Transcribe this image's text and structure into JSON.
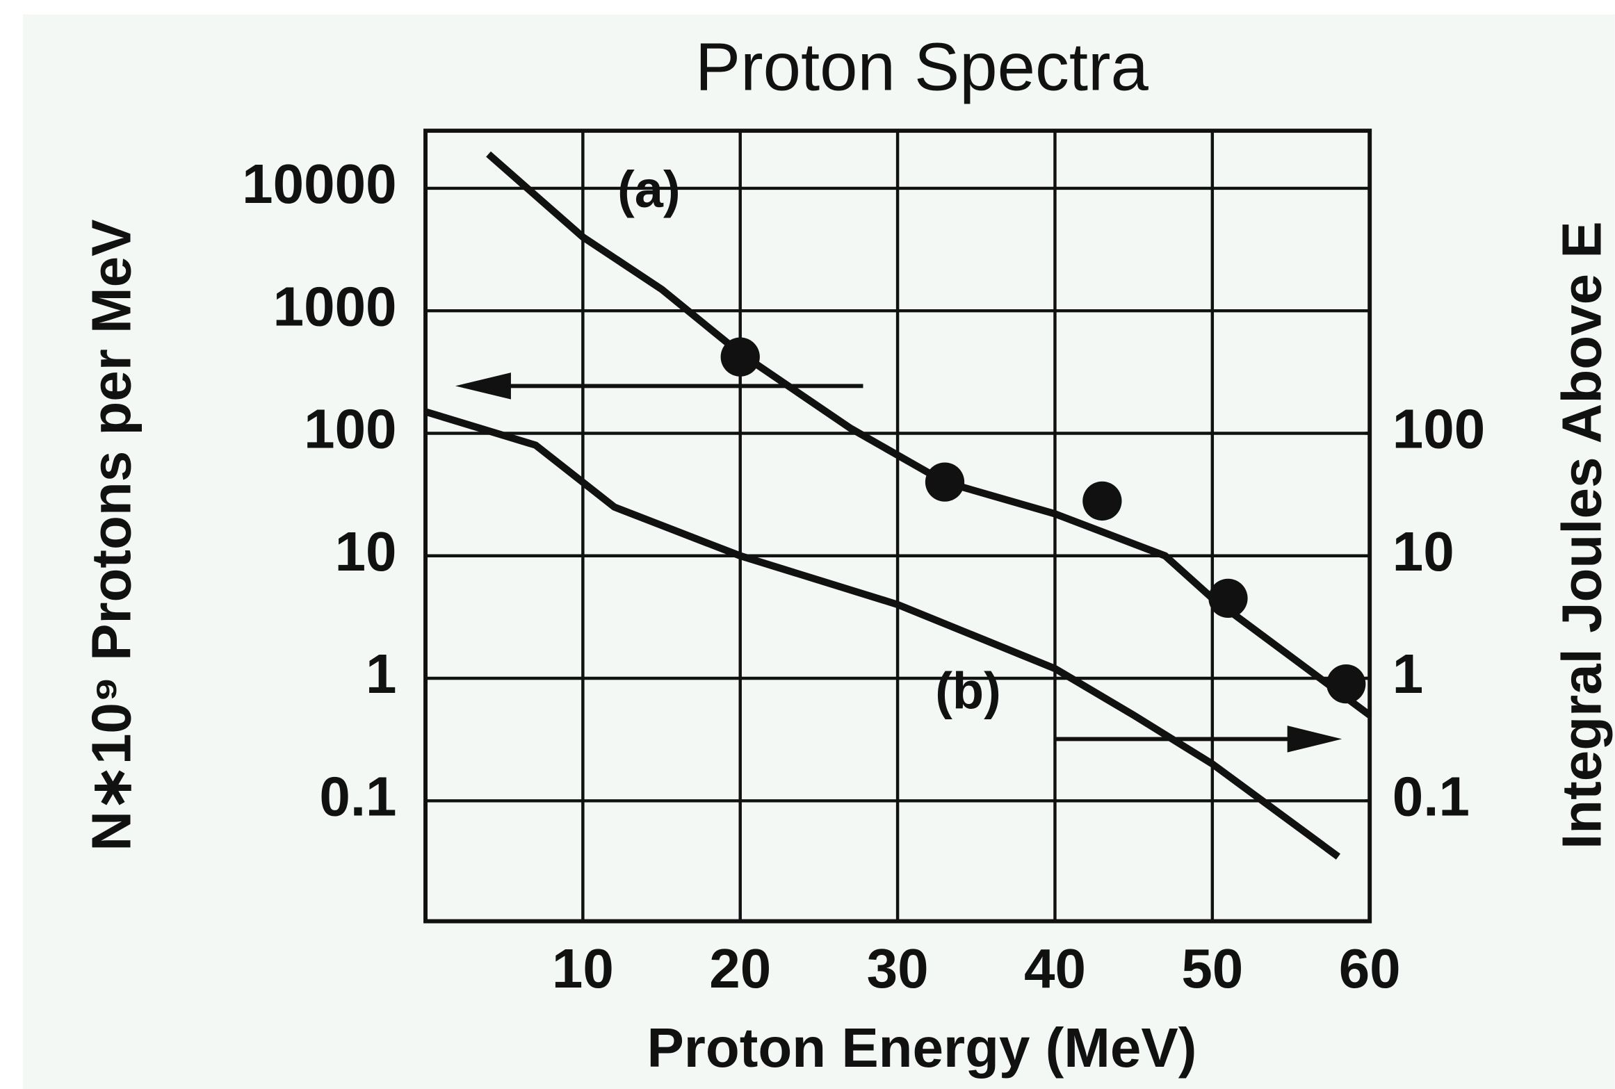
{
  "chart_data": {
    "type": "line",
    "title": "Proton Spectra",
    "x_label": "Proton Energy  (MeV)",
    "y_label": "N∗10⁹  Protons per MeV",
    "y2_label": "Integral  Joules  Above E",
    "xlim": [
      0,
      60
    ],
    "xticks": [
      10,
      20,
      30,
      40,
      50,
      60
    ],
    "ylim": [
      0.0104,
      29500
    ],
    "yticks": [
      0.1,
      1,
      10,
      100,
      1000,
      10000
    ],
    "y2lim": [
      0.0104,
      29500
    ],
    "y2ticks": [
      0.1,
      1,
      10,
      100
    ],
    "log_y": true,
    "grid": true,
    "series": [
      {
        "name": "(a)",
        "color": "#111111",
        "x": [
          4,
          10,
          15,
          20,
          27,
          33,
          40,
          47,
          50,
          55,
          60
        ],
        "values": [
          19000,
          4000,
          1500,
          450,
          110,
          40,
          22,
          10,
          4.5,
          1.5,
          0.5
        ],
        "markers": {
          "x": [
            20,
            33,
            43,
            51,
            58.5
          ],
          "values": [
            420,
            40,
            28,
            4.5,
            0.9
          ]
        }
      },
      {
        "name": "(b)",
        "color": "#111111",
        "axis": "y2",
        "x": [
          0,
          7,
          12,
          20,
          30,
          40,
          45,
          50,
          58
        ],
        "values": [
          150,
          80,
          25,
          10,
          4,
          1.2,
          0.5,
          0.2,
          0.035
        ]
      }
    ]
  }
}
